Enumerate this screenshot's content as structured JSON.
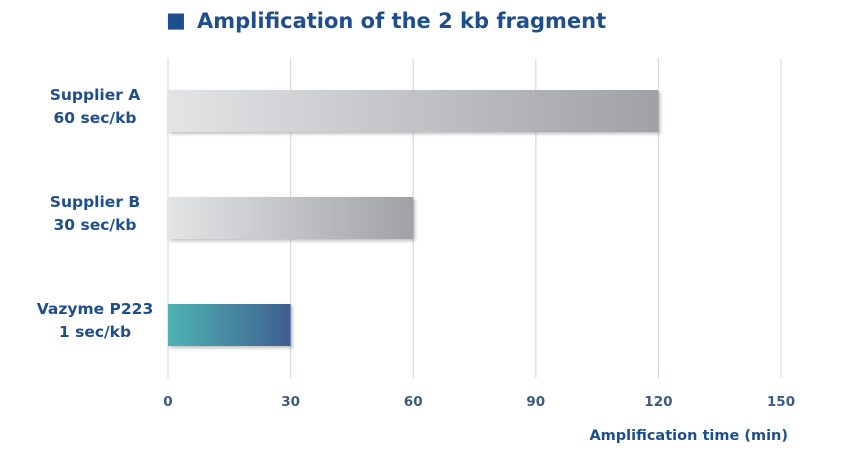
{
  "colors": {
    "text": "#1f4e8c",
    "tick": "#3d5a80",
    "grid": "#d6dbe8",
    "bar_gray_light": "#e3e4e6",
    "bar_gray_dark": "#9fa1a4",
    "bar_teal": "#4fb3b3",
    "bar_blue": "#3f5f90"
  },
  "chart_data": {
    "type": "bar",
    "orientation": "horizontal",
    "title": "Amplification of the 2 kb fragment",
    "title_marker": "■",
    "categories": [
      [
        "Supplier A",
        "60 sec/kb"
      ],
      [
        "Supplier B",
        "30 sec/kb"
      ],
      [
        "Vazyme P223",
        "1 sec/kb"
      ]
    ],
    "values": [
      120,
      60,
      30
    ],
    "xlabel": "Amplification time (min)",
    "xlim": [
      0,
      150
    ],
    "xticks": [
      0,
      30,
      60,
      90,
      120,
      150
    ],
    "grid": "vertical",
    "legend": "none"
  }
}
